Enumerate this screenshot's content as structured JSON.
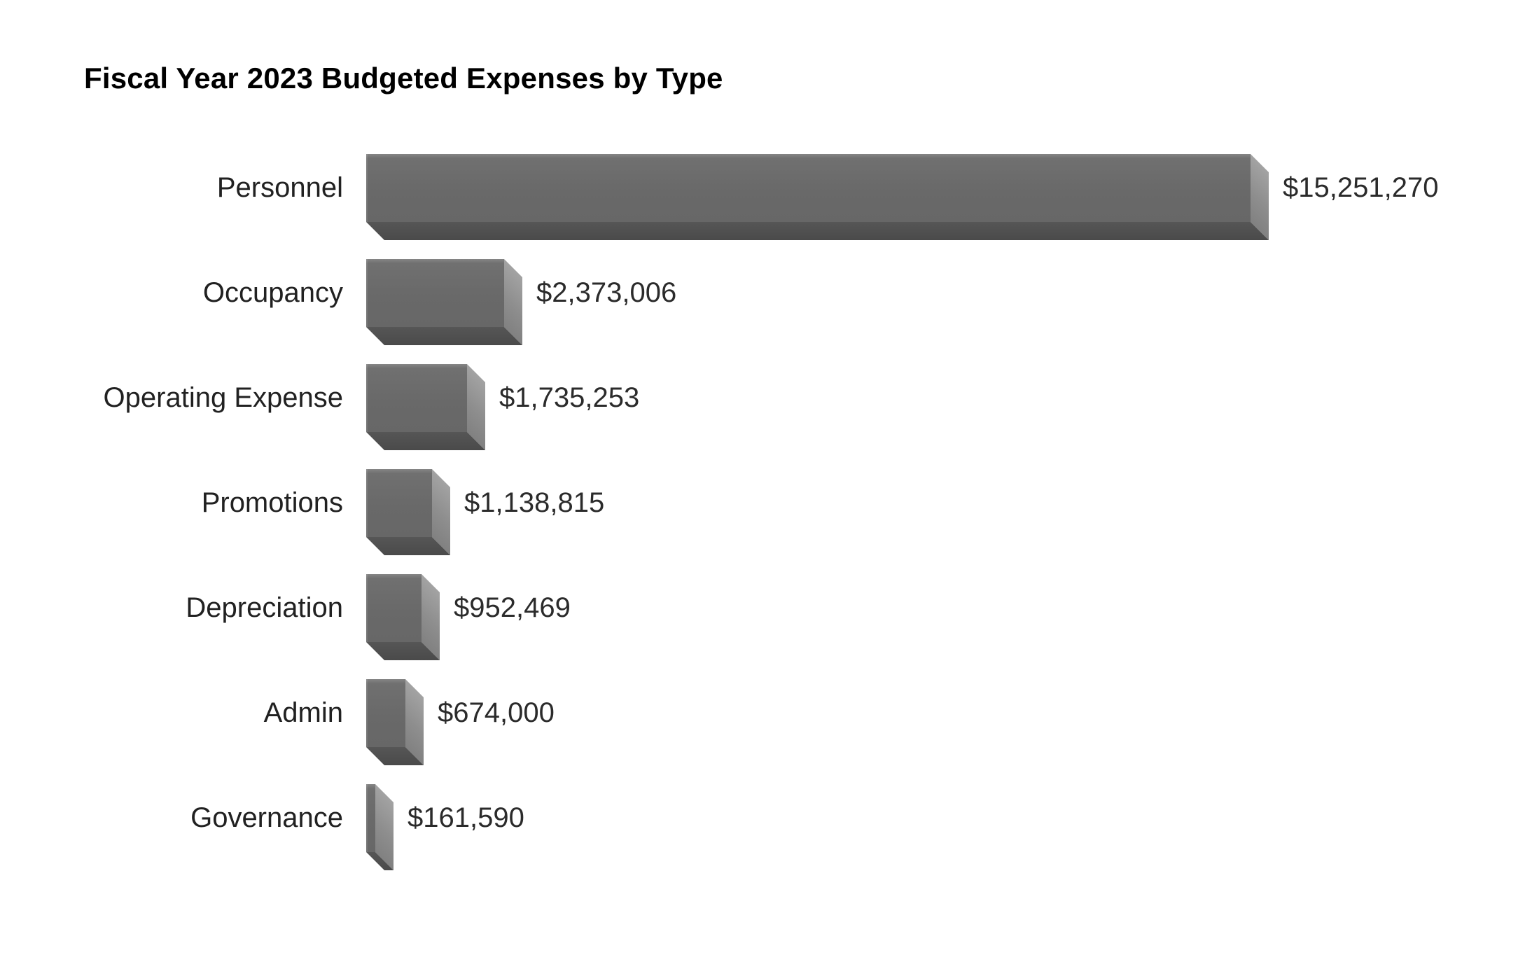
{
  "page": {
    "background": "#ffffff"
  },
  "chart_data": {
    "type": "bar",
    "orientation": "horizontal",
    "style": "3d",
    "title": "Fiscal Year 2023 Budgeted Expenses by Type",
    "categories": [
      "Personnel",
      "Occupancy",
      "Operating Expense",
      "Promotions",
      "Depreciation",
      "Admin",
      "Governance"
    ],
    "values": [
      15251270,
      2373006,
      1735253,
      1138815,
      952469,
      674000,
      161590
    ],
    "value_labels": [
      "$15,251,270",
      "$2,373,006",
      "$1,735,253",
      "$1,138,815",
      "$952,469",
      "$674,000",
      "$161,590"
    ],
    "xlabel": "",
    "ylabel": "",
    "xlim": [
      0,
      15251270
    ],
    "grid": false,
    "legend": false,
    "colors": {
      "bar_face": "#696969",
      "bar_side": "#939393",
      "bar_bottom": "#4e4e4e",
      "title_text": "#000000",
      "label_text": "#212121",
      "value_text": "#2b2b2b",
      "background": "#ffffff"
    }
  }
}
